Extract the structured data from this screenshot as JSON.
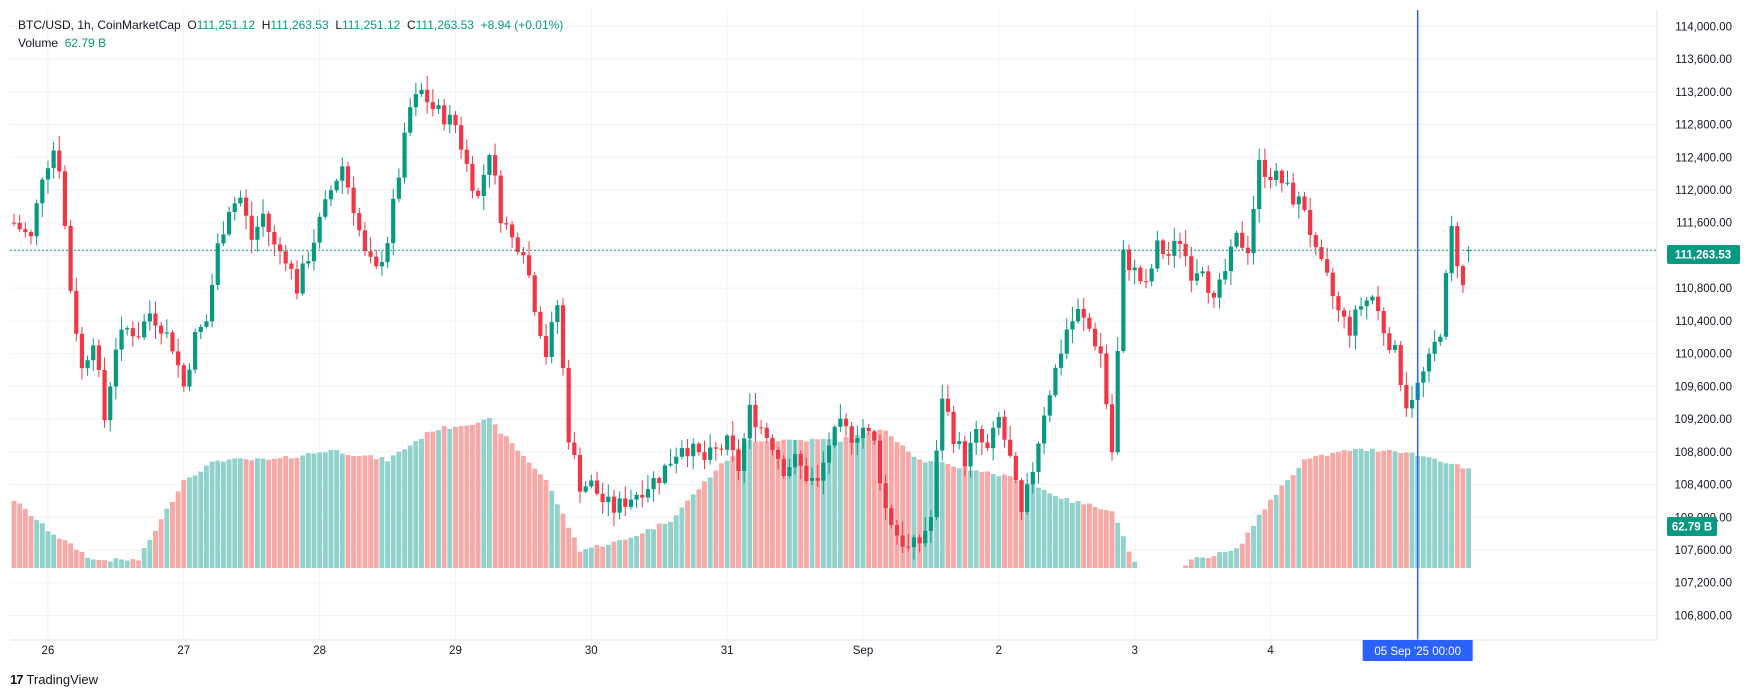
{
  "legend": {
    "symbol": "BTC/USD, 1h, CoinMarketCap",
    "open_label": "O",
    "open": "111,251.12",
    "high_label": "H",
    "high": "111,263.53",
    "low_label": "L",
    "low": "111,251.12",
    "close_label": "C",
    "close": "111,263.53",
    "change": "+8.94 (+0.01%)",
    "volume_label": "Volume",
    "volume_value": "62.79 B"
  },
  "price_tag": "111,263.53",
  "volume_tag": "62.79 B",
  "crosshair_time": "05 Sep '25   00:00",
  "brand": {
    "logo": "17",
    "name": "TradingView"
  },
  "colors": {
    "up": "#089981",
    "down": "#f23645",
    "up_vol": "#92d2cc",
    "down_vol": "#f7a9a7",
    "grid": "#f0f3fa",
    "crosshair": "#2962ff",
    "axis_text": "#131722"
  },
  "chart_data": {
    "type": "candlestick",
    "title": "BTC/USD, 1h, CoinMarketCap",
    "ylim": [
      106500,
      114200
    ],
    "y_ticks": [
      "114,000.00",
      "113,600.00",
      "113,200.00",
      "112,800.00",
      "112,400.00",
      "112,000.00",
      "111,600.00",
      "111,200.00",
      "110,800.00",
      "110,400.00",
      "110,000.00",
      "109,600.00",
      "109,200.00",
      "108,800.00",
      "108,400.00",
      "108,000.00",
      "107,600.00",
      "107,200.00",
      "106,800.00"
    ],
    "y_tick_values": [
      114000,
      113600,
      113200,
      112800,
      112400,
      112000,
      111600,
      111200,
      110800,
      110400,
      110000,
      109600,
      109200,
      108800,
      108400,
      108000,
      107600,
      107200,
      106800
    ],
    "x_ticks": [
      "26",
      "27",
      "28",
      "29",
      "30",
      "31",
      "Sep",
      "2",
      "3",
      "4"
    ],
    "x_tick_hours": [
      6,
      30,
      54,
      78,
      102,
      126,
      150,
      174,
      198,
      222
    ],
    "last_price": 111263.53,
    "last_volume": "62.79B",
    "crosshair_hour": 248,
    "hours": 258,
    "close_anchors": [
      [
        0,
        111600
      ],
      [
        3,
        111400
      ],
      [
        5,
        112200
      ],
      [
        7,
        112500
      ],
      [
        8,
        112300
      ],
      [
        10,
        110800
      ],
      [
        12,
        109800
      ],
      [
        14,
        110200
      ],
      [
        16,
        109200
      ],
      [
        18,
        110100
      ],
      [
        20,
        110300
      ],
      [
        22,
        110250
      ],
      [
        24,
        110500
      ],
      [
        26,
        110350
      ],
      [
        28,
        110100
      ],
      [
        30,
        109600
      ],
      [
        32,
        110200
      ],
      [
        34,
        110400
      ],
      [
        36,
        111300
      ],
      [
        38,
        111800
      ],
      [
        40,
        111900
      ],
      [
        42,
        111400
      ],
      [
        44,
        111700
      ],
      [
        46,
        111300
      ],
      [
        48,
        111200
      ],
      [
        50,
        110800
      ],
      [
        52,
        111200
      ],
      [
        54,
        111600
      ],
      [
        56,
        112000
      ],
      [
        58,
        112300
      ],
      [
        60,
        111800
      ],
      [
        62,
        111200
      ],
      [
        64,
        111000
      ],
      [
        66,
        111400
      ],
      [
        68,
        112200
      ],
      [
        70,
        113000
      ],
      [
        72,
        113200
      ],
      [
        74,
        113000
      ],
      [
        76,
        112900
      ],
      [
        78,
        112800
      ],
      [
        80,
        112300
      ],
      [
        82,
        111900
      ],
      [
        84,
        112500
      ],
      [
        86,
        111700
      ],
      [
        88,
        111400
      ],
      [
        90,
        111300
      ],
      [
        92,
        110600
      ],
      [
        94,
        110000
      ],
      [
        96,
        110600
      ],
      [
        98,
        109000
      ],
      [
        100,
        108400
      ],
      [
        102,
        108400
      ],
      [
        104,
        108200
      ],
      [
        106,
        108100
      ],
      [
        108,
        108200
      ],
      [
        110,
        108300
      ],
      [
        112,
        108400
      ],
      [
        114,
        108500
      ],
      [
        116,
        108700
      ],
      [
        118,
        108900
      ],
      [
        120,
        108800
      ],
      [
        122,
        108700
      ],
      [
        124,
        108800
      ],
      [
        126,
        108900
      ],
      [
        128,
        108600
      ],
      [
        130,
        109300
      ],
      [
        132,
        109100
      ],
      [
        134,
        108900
      ],
      [
        136,
        108600
      ],
      [
        138,
        108700
      ],
      [
        140,
        108500
      ],
      [
        142,
        108400
      ],
      [
        144,
        108900
      ],
      [
        146,
        109100
      ],
      [
        148,
        109000
      ],
      [
        150,
        109100
      ],
      [
        152,
        108900
      ],
      [
        154,
        108100
      ],
      [
        156,
        107800
      ],
      [
        158,
        107600
      ],
      [
        160,
        107700
      ],
      [
        162,
        108000
      ],
      [
        164,
        109500
      ],
      [
        166,
        109000
      ],
      [
        168,
        108700
      ],
      [
        170,
        109000
      ],
      [
        172,
        108800
      ],
      [
        174,
        109200
      ],
      [
        176,
        108700
      ],
      [
        178,
        108000
      ],
      [
        180,
        108600
      ],
      [
        182,
        109300
      ],
      [
        184,
        109800
      ],
      [
        186,
        110300
      ],
      [
        188,
        110500
      ],
      [
        190,
        110300
      ],
      [
        192,
        110000
      ],
      [
        194,
        108800
      ],
      [
        196,
        111200
      ],
      [
        198,
        111000
      ],
      [
        200,
        110800
      ],
      [
        202,
        111300
      ],
      [
        204,
        111200
      ],
      [
        206,
        111400
      ],
      [
        208,
        111000
      ],
      [
        210,
        111100
      ],
      [
        212,
        110600
      ],
      [
        214,
        111000
      ],
      [
        216,
        111400
      ],
      [
        218,
        111300
      ],
      [
        220,
        112300
      ],
      [
        222,
        112200
      ],
      [
        224,
        112100
      ],
      [
        226,
        111900
      ],
      [
        228,
        111800
      ],
      [
        230,
        111200
      ],
      [
        232,
        110900
      ],
      [
        234,
        110500
      ],
      [
        236,
        110300
      ],
      [
        238,
        110600
      ],
      [
        240,
        110700
      ],
      [
        242,
        110300
      ],
      [
        244,
        110000
      ],
      [
        246,
        109400
      ],
      [
        248,
        109600
      ],
      [
        250,
        109900
      ],
      [
        252,
        110300
      ],
      [
        254,
        111500
      ],
      [
        256,
        110800
      ],
      [
        257,
        111263
      ]
    ],
    "volume_anchors": [
      [
        0,
        500
      ],
      [
        6,
        530
      ],
      [
        14,
        560
      ],
      [
        22,
        560
      ],
      [
        30,
        480
      ],
      [
        36,
        460
      ],
      [
        46,
        460
      ],
      [
        56,
        450
      ],
      [
        66,
        460
      ],
      [
        74,
        430
      ],
      [
        84,
        420
      ],
      [
        94,
        480
      ],
      [
        100,
        550
      ],
      [
        108,
        540
      ],
      [
        116,
        520
      ],
      [
        124,
        470
      ],
      [
        130,
        440
      ],
      [
        136,
        440
      ],
      [
        146,
        440
      ],
      [
        154,
        430
      ],
      [
        160,
        460
      ],
      [
        170,
        470
      ],
      [
        178,
        480
      ],
      [
        186,
        500
      ],
      [
        194,
        510
      ],
      [
        200,
        590
      ],
      [
        208,
        560
      ],
      [
        216,
        550
      ],
      [
        222,
        500
      ],
      [
        228,
        460
      ],
      [
        236,
        450
      ],
      [
        244,
        450
      ],
      [
        252,
        460
      ],
      [
        257,
        470
      ]
    ]
  }
}
